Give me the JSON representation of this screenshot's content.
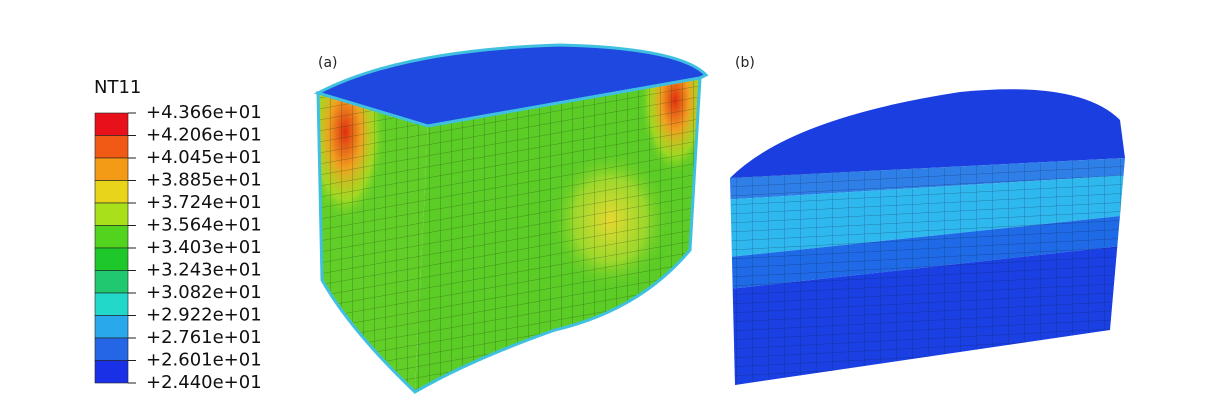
{
  "legend": {
    "title": "NT11",
    "labels": [
      "+4.366e+01",
      "+4.206e+01",
      "+4.045e+01",
      "+3.885e+01",
      "+3.724e+01",
      "+3.564e+01",
      "+3.403e+01",
      "+3.243e+01",
      "+3.082e+01",
      "+2.922e+01",
      "+2.761e+01",
      "+2.601e+01",
      "+2.440e+01"
    ]
  },
  "panels": [
    {
      "label": "(a)"
    },
    {
      "label": "(b)"
    }
  ]
}
